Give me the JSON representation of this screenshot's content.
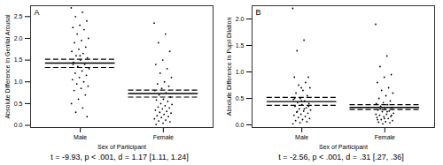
{
  "chart_data": [
    {
      "type": "strip",
      "title": "A",
      "x_label": "Sex of Participant",
      "y_label": "Absolute Difference In Genital Arousal",
      "categories": [
        "Male",
        "Female"
      ],
      "values": [
        [
          2.7,
          2.6,
          2.5,
          2.4,
          2.3,
          2.25,
          2.2,
          2.1,
          2.0,
          1.95,
          1.9,
          1.8,
          1.75,
          1.7,
          1.65,
          1.6,
          1.55,
          1.5,
          1.45,
          1.4,
          1.35,
          1.3,
          1.25,
          1.2,
          1.15,
          1.1,
          1.05,
          1.0,
          0.95,
          0.9,
          0.85,
          0.8,
          0.7,
          0.6,
          0.5,
          0.4,
          0.3,
          0.2,
          1.6,
          1.4
        ],
        [
          2.35,
          2.1,
          1.9,
          1.7,
          1.5,
          1.4,
          1.3,
          1.2,
          1.1,
          1.0,
          0.95,
          0.9,
          0.85,
          0.8,
          0.75,
          0.7,
          0.65,
          0.6,
          0.58,
          0.55,
          0.5,
          0.48,
          0.45,
          0.42,
          0.4,
          0.38,
          0.35,
          0.32,
          0.3,
          0.28,
          0.25,
          0.22,
          0.2,
          0.18,
          0.15,
          0.12,
          0.1,
          0.08,
          0.05,
          0.02
        ]
      ],
      "means": [
        1.43,
        0.73
      ],
      "ci_lower": [
        1.33,
        0.65
      ],
      "ci_upper": [
        1.52,
        0.81
      ],
      "ylim": [
        -0.05,
        2.75
      ],
      "yticks": [
        {
          "value": 0,
          "label": "0.0"
        },
        {
          "value": 0.5,
          "label": "0.5"
        },
        {
          "value": 1,
          "label": "1.0"
        },
        {
          "value": 1.5,
          "label": "1.5"
        },
        {
          "value": 2,
          "label": "2.0"
        },
        {
          "value": 2.5,
          "label": "2.5"
        }
      ],
      "color": "#000000",
      "annotation": "t = -9.93, p < .001, d = 1.17 [1.11, 1.24]"
    },
    {
      "type": "strip",
      "title": "B",
      "x_label": "Sex of Participant",
      "y_label": "Absolute Difference In Pupil Dilation",
      "categories": [
        "Male",
        "Female"
      ],
      "values": [
        [
          2.2,
          1.6,
          1.4,
          0.9,
          0.7,
          0.9,
          0.8,
          0.75,
          0.7,
          0.65,
          0.6,
          0.55,
          0.5,
          0.48,
          0.45,
          0.42,
          0.4,
          0.38,
          0.35,
          0.32,
          0.3,
          0.28,
          0.26,
          0.24,
          0.22,
          0.2,
          0.18,
          0.16,
          0.14,
          0.12,
          0.1,
          0.08,
          0.06,
          0.04,
          0.02,
          0.3,
          0.25,
          0.35,
          0.45,
          0.5
        ],
        [
          1.9,
          1.3,
          1.1,
          0.95,
          0.9,
          0.8,
          0.7,
          0.65,
          0.6,
          0.55,
          0.5,
          0.45,
          0.42,
          0.4,
          0.38,
          0.35,
          0.32,
          0.3,
          0.28,
          0.26,
          0.25,
          0.22,
          0.2,
          0.18,
          0.16,
          0.15,
          0.14,
          0.12,
          0.1,
          0.08,
          0.06,
          0.05,
          0.04,
          0.02,
          0.2,
          0.25,
          0.3,
          0.18,
          0.12,
          0.1
        ]
      ],
      "means": [
        0.44,
        0.33
      ],
      "ci_lower": [
        0.37,
        0.29
      ],
      "ci_upper": [
        0.52,
        0.38
      ],
      "ylim": [
        -0.05,
        2.25
      ],
      "yticks": [
        {
          "value": 0,
          "label": "0.0"
        },
        {
          "value": 0.5,
          "label": "0.5"
        },
        {
          "value": 1,
          "label": "1.0"
        },
        {
          "value": 1.5,
          "label": "1.5"
        },
        {
          "value": 2,
          "label": "2.0"
        }
      ],
      "color": "#000000",
      "annotation": "t = -2.56, p < .001, d = .31 [.27, .36]"
    }
  ]
}
